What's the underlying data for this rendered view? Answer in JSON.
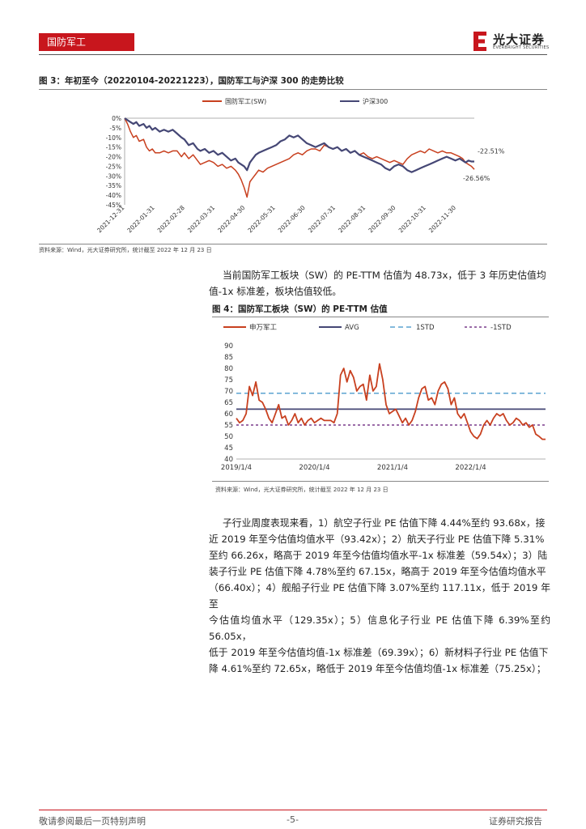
{
  "header": {
    "section_tab": "国防军工",
    "logo_cn": "光大证券",
    "logo_en": "EVERBRIGHT SECURITIES"
  },
  "figure3": {
    "title": "图 3：年初至今（20220104-20221223），国防军工与沪深 300 的走势比较",
    "source": "资料来源：Wind，光大证券研究所，统计截至 2022 年 12 月 23 日"
  },
  "figure4": {
    "title": "图 4：国防军工板块（SW）的 PE-TTM 估值",
    "source": "资料来源：Wind，光大证券研究所，统计截至 2022 年 12 月 23 日"
  },
  "paragraph1": {
    "line1": "当前国防军工板块（SW）的 PE-TTM 估值为 48.73x，低于 3 年历史估值均",
    "line2": "值-1x 标准差，板块估值较低。"
  },
  "paragraph2": {
    "lines": [
      "子行业周度表现来看，1）航空子行业 PE 估值下降 4.44%至约 93.68x，接",
      "近 2019 年至今估值均值水平（93.42x）；2）航天子行业 PE 估值下降 5.31%",
      "至约 66.26x，略高于 2019 年至今估值均值水平-1x 标准差（59.54x）；3）陆",
      "装子行业 PE 估值下降 4.78%至约 67.15x，略高于 2019 年至今估值均值水平",
      "（66.40x）；4）舰船子行业 PE 估值下降 3.07%至约 117.11x，低于 2019 年至",
      "今估值均值水平（129.35x）；5）信息化子行业 PE 估值下降 6.39%至约 56.05x，",
      "低于 2019 年至今估值均值-1x 标准差（69.39x）；6）新材料子行业 PE 估值下",
      "降 4.61%至约 72.65x，略低于 2019 年至今估值均值-1x 标准差（75.25x）；"
    ]
  },
  "footer": {
    "left": "敬请参阅最后一页特别声明",
    "center": "-5-",
    "right": "证券研究报告"
  },
  "colors": {
    "brand_red": "#c8161d",
    "series_red": "#c8401f",
    "series_navy": "#454775",
    "std_blue": "#5ba3d0",
    "std_purple": "#7a3c8c"
  },
  "chart_data": [
    {
      "type": "line",
      "title": "",
      "ylim": [
        -45,
        0
      ],
      "y_ticks": [
        "0%",
        "-5%",
        "-10%",
        "-15%",
        "-20%",
        "-25%",
        "-30%",
        "-35%",
        "-40%",
        "-45%"
      ],
      "x_ticks": [
        "2021-12-31",
        "2022-01-31",
        "2022-02-28",
        "2022-03-31",
        "2022-04-30",
        "2022-05-31",
        "2022-06-30",
        "2022-07-31",
        "2022-08-31",
        "2022-09-30",
        "2022-10-31",
        "2022-11-30"
      ],
      "legend": "top",
      "annotations": [
        "-22.51%",
        "-26.56%"
      ],
      "series": [
        {
          "name": "国防军工(SW)",
          "color": "#c8401f",
          "x": [
            0,
            2,
            4,
            6,
            8,
            10,
            13,
            15,
            17,
            19,
            21,
            24,
            27,
            30,
            33,
            36,
            39,
            41,
            44,
            47,
            50,
            52,
            55,
            58,
            61,
            64,
            67,
            70,
            73,
            76,
            78,
            80,
            82,
            84,
            86,
            88,
            90,
            92,
            95,
            98,
            101,
            104,
            107,
            110,
            113,
            116,
            119,
            122,
            125,
            128,
            131,
            134,
            137,
            140,
            143,
            146,
            149,
            152,
            155,
            158,
            161,
            164,
            167,
            170,
            173,
            176,
            179,
            182,
            185,
            188,
            191,
            194,
            197,
            200,
            203,
            206,
            209,
            212,
            215,
            218,
            221,
            224,
            227,
            230,
            232,
            234,
            236,
            238,
            240
          ],
          "values": [
            0,
            -3,
            -7,
            -10,
            -9,
            -12,
            -11,
            -15,
            -17,
            -16,
            -18,
            -18,
            -17,
            -18,
            -17,
            -17,
            -20,
            -18,
            -21,
            -19,
            -22,
            -24,
            -23,
            -22,
            -23,
            -25,
            -24,
            -26,
            -25,
            -27,
            -29,
            -32,
            -36,
            -41,
            -33,
            -31,
            -29,
            -27,
            -28,
            -26,
            -25,
            -24,
            -23,
            -22,
            -21,
            -19,
            -18,
            -19,
            -17,
            -16,
            -16,
            -17,
            -14,
            -15,
            -16,
            -15,
            -17,
            -16,
            -18,
            -17,
            -19,
            -18,
            -20,
            -21,
            -20,
            -21,
            -22,
            -23,
            -22,
            -23,
            -24,
            -21,
            -19,
            -18,
            -17,
            -18,
            -16,
            -17,
            -18,
            -17,
            -18,
            -18,
            -19,
            -20,
            -21,
            -23,
            -24,
            -25,
            -26.56
          ]
        },
        {
          "name": "沪深300",
          "color": "#454775",
          "x": [
            0,
            2,
            4,
            6,
            8,
            10,
            13,
            15,
            17,
            19,
            21,
            24,
            27,
            30,
            33,
            36,
            39,
            41,
            44,
            47,
            50,
            52,
            55,
            58,
            61,
            64,
            67,
            70,
            73,
            76,
            78,
            80,
            82,
            84,
            86,
            88,
            90,
            92,
            95,
            98,
            101,
            104,
            107,
            110,
            113,
            116,
            119,
            122,
            125,
            128,
            131,
            134,
            137,
            140,
            143,
            146,
            149,
            152,
            155,
            158,
            161,
            164,
            167,
            170,
            173,
            176,
            179,
            182,
            185,
            188,
            191,
            194,
            197,
            200,
            203,
            206,
            209,
            212,
            215,
            218,
            221,
            224,
            227,
            230,
            232,
            234,
            236,
            238,
            240
          ],
          "values": [
            0,
            -1,
            -2,
            -3,
            -2,
            -4,
            -3,
            -5,
            -4,
            -6,
            -5,
            -7,
            -6,
            -7,
            -6,
            -8,
            -10,
            -11,
            -14,
            -13,
            -16,
            -17,
            -16,
            -18,
            -17,
            -19,
            -18,
            -20,
            -22,
            -21,
            -23,
            -24,
            -25,
            -27,
            -23,
            -21,
            -19,
            -18,
            -17,
            -16,
            -15,
            -14,
            -12,
            -11,
            -9,
            -10,
            -9,
            -11,
            -13,
            -14,
            -15,
            -14,
            -13,
            -15,
            -16,
            -15,
            -17,
            -16,
            -18,
            -17,
            -19,
            -20,
            -21,
            -22,
            -23,
            -24,
            -26,
            -27,
            -25,
            -24,
            -25,
            -27,
            -28,
            -27,
            -26,
            -25,
            -24,
            -23,
            -22,
            -21,
            -20,
            -21,
            -22,
            -21,
            -22,
            -23,
            -22,
            -22.5,
            -22.51
          ]
        }
      ]
    },
    {
      "type": "line",
      "title": "",
      "ylim": [
        40,
        90
      ],
      "y_ticks": [
        "90",
        "85",
        "80",
        "75",
        "70",
        "65",
        "60",
        "55",
        "50",
        "45",
        "40"
      ],
      "x_ticks": [
        "2019/1/4",
        "2020/1/4",
        "2021/1/4",
        "2022/1/4"
      ],
      "x_tick_positions": [
        0,
        12,
        24,
        36
      ],
      "legend": "top",
      "series": [
        {
          "name": "申万军工",
          "color": "#c8401f",
          "x": [
            0,
            0.5,
            1,
            1.5,
            2,
            2.5,
            3,
            3.5,
            4,
            4.5,
            5,
            5.5,
            6,
            6.5,
            7,
            7.5,
            8,
            8.5,
            9,
            9.5,
            10,
            10.5,
            11,
            11.5,
            12,
            12.5,
            13,
            13.5,
            14,
            14.5,
            15,
            15.5,
            16,
            16.5,
            17,
            17.5,
            18,
            18.5,
            19,
            19.5,
            20,
            20.5,
            21,
            21.5,
            22,
            22.5,
            23,
            23.5,
            24,
            24.5,
            25,
            25.5,
            26,
            26.5,
            27,
            27.5,
            28,
            28.5,
            29,
            29.5,
            30,
            30.5,
            31,
            31.5,
            32,
            32.5,
            33,
            33.5,
            34,
            34.5,
            35,
            35.5,
            36,
            36.5,
            37,
            37.5,
            38,
            38.5,
            39,
            39.5,
            40,
            40.5,
            41,
            41.5,
            42,
            42.5,
            43,
            43.5,
            44,
            44.5,
            45,
            45.5,
            46,
            46.5,
            47,
            47.5
          ],
          "values": [
            58,
            56,
            57,
            60,
            72,
            68,
            74,
            66,
            65,
            62,
            58,
            56,
            60,
            64,
            58,
            59,
            55,
            57,
            60,
            56,
            58,
            55,
            57,
            58,
            56,
            57,
            58,
            57,
            57,
            57,
            56,
            60,
            77,
            80,
            74,
            79,
            76,
            70,
            72,
            73,
            66,
            77,
            70,
            72,
            82,
            75,
            64,
            60,
            61,
            62,
            59,
            56,
            58,
            55,
            57,
            61,
            67,
            71,
            72,
            66,
            67,
            64,
            70,
            73,
            74,
            71,
            64,
            67,
            60,
            58,
            60,
            56,
            52,
            50,
            49,
            51,
            55,
            57,
            55,
            58,
            60,
            59,
            60,
            57,
            55,
            56,
            58,
            57,
            55,
            56,
            54,
            55,
            51,
            50,
            48.73,
            48.73
          ]
        },
        {
          "name": "AVG",
          "color": "#454775",
          "x": [
            0,
            47.5
          ],
          "values": [
            62,
            62
          ]
        },
        {
          "name": "1STD",
          "color": "#5ba3d0",
          "x": [
            0,
            47.5
          ],
          "values": [
            69,
            69
          ]
        },
        {
          "name": "-1STD",
          "color": "#7a3c8c",
          "x": [
            0,
            47.5
          ],
          "values": [
            55,
            55
          ]
        }
      ]
    }
  ]
}
